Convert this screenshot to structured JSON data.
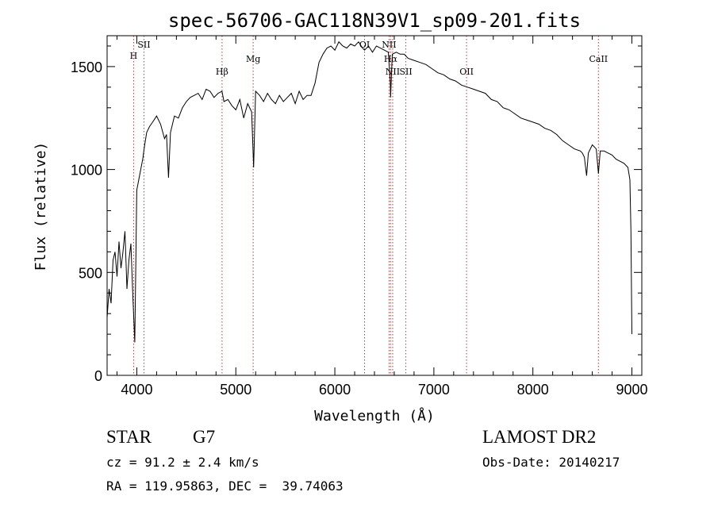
{
  "chart_data": {
    "type": "line",
    "title": "spec-56706-GAC118N39V1_sp09-201.fits",
    "xlabel": "Wavelength (Å)",
    "ylabel": "Flux (relative)",
    "xlim": [
      3700,
      9100
    ],
    "ylim": [
      0,
      1650
    ],
    "xticks": [
      4000,
      5000,
      6000,
      7000,
      8000,
      9000
    ],
    "yticks": [
      0,
      500,
      1000,
      1500
    ],
    "grid": false,
    "series": [
      {
        "x": [
          3700,
          3720,
          3740,
          3760,
          3780,
          3800,
          3820,
          3840,
          3860,
          3880,
          3900,
          3920,
          3940,
          3960,
          3980,
          4000,
          4020,
          4040,
          4060,
          4080,
          4100,
          4130,
          4160,
          4200,
          4240,
          4280,
          4300,
          4320,
          4340,
          4380,
          4420,
          4460,
          4500,
          4540,
          4580,
          4620,
          4660,
          4700,
          4740,
          4780,
          4820,
          4860,
          4880,
          4920,
          4960,
          5000,
          5040,
          5080,
          5120,
          5160,
          5180,
          5200,
          5240,
          5280,
          5320,
          5360,
          5400,
          5440,
          5480,
          5520,
          5560,
          5600,
          5640,
          5680,
          5720,
          5760,
          5800,
          5840,
          5880,
          5920,
          5960,
          6000,
          6040,
          6080,
          6120,
          6160,
          6200,
          6240,
          6280,
          6300,
          6340,
          6380,
          6420,
          6460,
          6500,
          6540,
          6560,
          6563,
          6580,
          6620,
          6660,
          6700,
          6740,
          6800,
          6860,
          6920,
          6980,
          7040,
          7100,
          7160,
          7220,
          7280,
          7340,
          7400,
          7460,
          7520,
          7580,
          7640,
          7700,
          7760,
          7820,
          7880,
          7940,
          8000,
          8060,
          8120,
          8180,
          8240,
          8300,
          8360,
          8420,
          8480,
          8500,
          8520,
          8542,
          8560,
          8600,
          8640,
          8662,
          8680,
          8720,
          8760,
          8800,
          8840,
          8880,
          8920,
          8960,
          8980,
          8990,
          9000
        ],
        "values": [
          280,
          420,
          350,
          560,
          600,
          480,
          650,
          520,
          600,
          700,
          420,
          560,
          640,
          380,
          160,
          900,
          950,
          1000,
          1050,
          1120,
          1180,
          1210,
          1230,
          1260,
          1220,
          1150,
          1170,
          960,
          1180,
          1260,
          1250,
          1300,
          1330,
          1350,
          1360,
          1370,
          1340,
          1390,
          1380,
          1350,
          1370,
          1380,
          1330,
          1340,
          1310,
          1290,
          1340,
          1250,
          1320,
          1280,
          1010,
          1380,
          1360,
          1330,
          1370,
          1340,
          1320,
          1360,
          1330,
          1350,
          1370,
          1320,
          1380,
          1340,
          1360,
          1360,
          1420,
          1520,
          1560,
          1590,
          1600,
          1580,
          1620,
          1600,
          1590,
          1610,
          1600,
          1620,
          1590,
          1580,
          1600,
          1570,
          1600,
          1590,
          1580,
          1570,
          1420,
          1350,
          1560,
          1570,
          1560,
          1560,
          1540,
          1530,
          1520,
          1510,
          1490,
          1470,
          1460,
          1440,
          1430,
          1410,
          1400,
          1390,
          1380,
          1370,
          1340,
          1330,
          1300,
          1290,
          1270,
          1250,
          1240,
          1230,
          1220,
          1200,
          1190,
          1170,
          1140,
          1120,
          1100,
          1090,
          1080,
          1060,
          970,
          1080,
          1120,
          1100,
          980,
          1090,
          1090,
          1080,
          1070,
          1050,
          1040,
          1030,
          1010,
          950,
          700,
          200
        ]
      }
    ],
    "lines": [
      {
        "name": "H",
        "x": 3968
      },
      {
        "name": "SII",
        "x": 4072
      },
      {
        "name": "Hβ",
        "x": 4861
      },
      {
        "name": "Mg",
        "x": 5175
      },
      {
        "name": "OI",
        "x": 6300
      },
      {
        "name": "Hα",
        "x": 6563
      },
      {
        "name": "NII",
        "x": 6584
      },
      {
        "name": "NII",
        "x": 6548
      },
      {
        "name": "SII",
        "x": 6717
      },
      {
        "name": "OII",
        "x": 7330
      },
      {
        "name": "CaII",
        "x": 8662
      }
    ]
  },
  "info": {
    "object_type": "STAR",
    "subclass": "G7",
    "survey": "LAMOST DR2",
    "redshift": "cz = 91.2 ± 2.4 km/s",
    "obs_date": "Obs-Date: 20140217",
    "coords": "RA = 119.95863, DEC =  39.74063"
  },
  "colors": {
    "line": "#000000",
    "marker_line": "#cc3333"
  }
}
